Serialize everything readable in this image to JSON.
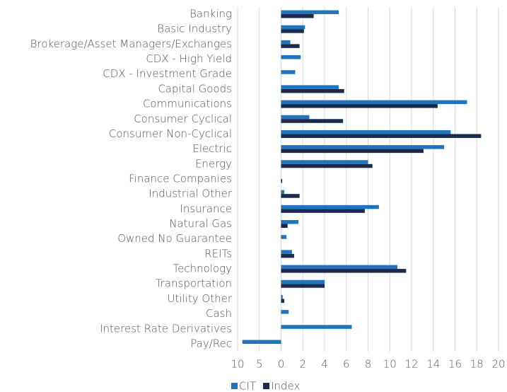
{
  "chart_data": {
    "type": "barh",
    "categories": [
      "Banking",
      "Basic Industry",
      "Brokerage/Asset Managers/Exchanges",
      "CDX - High Yield",
      "CDX - Investment Grade",
      "Capital Goods",
      "Communications",
      "Consumer Cyclical",
      "Consumer Non-Cyclical",
      "Electric",
      "Energy",
      "Finance Companies",
      "Industrial Other",
      "Insurance",
      "Natural Gas",
      "Owned No Guarantee",
      "REITs",
      "Technology",
      "Transportation",
      "Utility Other",
      "Cash",
      "Interest Rate Derivatives",
      "Pay/Rec"
    ],
    "series": [
      {
        "name": "CIT",
        "color": "#2173bc",
        "values": [
          5.3,
          2.2,
          0.85,
          1.8,
          1.3,
          5.3,
          17.1,
          2.6,
          15.6,
          15.0,
          8.0,
          null,
          0.3,
          9.0,
          1.6,
          0.5,
          1.0,
          10.7,
          4.0,
          0.15,
          0.7,
          6.5,
          -8.9
        ]
      },
      {
        "name": "Index",
        "color": "#1a2b4c",
        "values": [
          3.0,
          2.1,
          1.7,
          null,
          null,
          5.8,
          14.4,
          5.7,
          18.4,
          13.1,
          8.4,
          0.1,
          1.7,
          7.7,
          0.6,
          null,
          1.2,
          11.5,
          4.0,
          0.3,
          null,
          null,
          null
        ]
      }
    ],
    "xlim": [
      -10,
      20
    ],
    "xticks": [
      {
        "value": -10,
        "label": "10"
      },
      {
        "value": -5,
        "label": "5"
      },
      0,
      2,
      4,
      6,
      8,
      10,
      12,
      14,
      16,
      18,
      20
    ],
    "grid": true,
    "legend": "bottom"
  }
}
